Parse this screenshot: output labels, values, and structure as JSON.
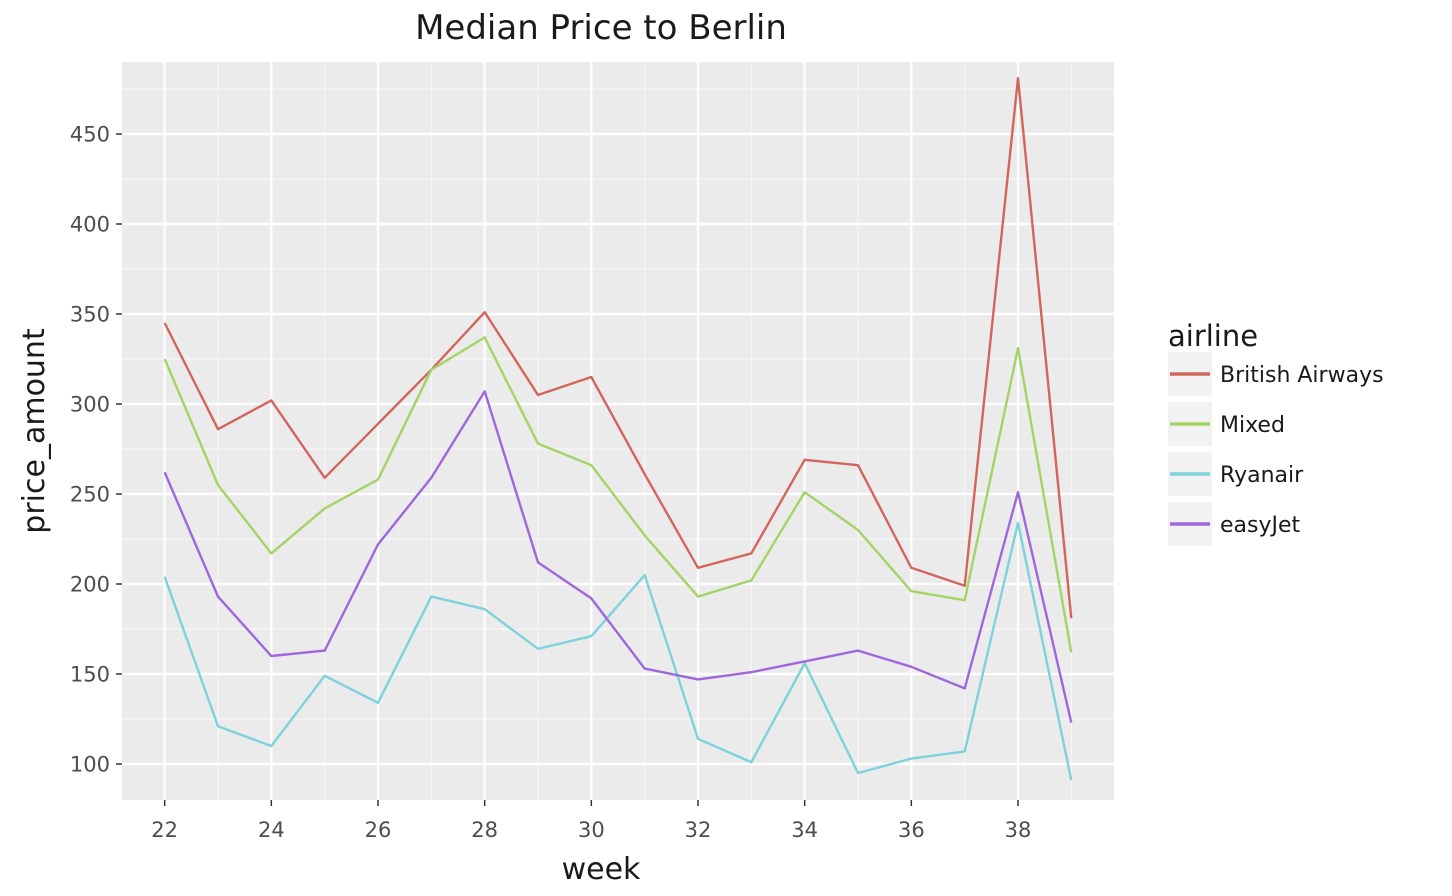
{
  "chart_data": {
    "type": "line",
    "title": "Median Price to Berlin",
    "xlabel": "week",
    "ylabel": "price_amount",
    "xlim": [
      21.2,
      39.8
    ],
    "ylim": [
      80,
      490
    ],
    "xticks": [
      22,
      24,
      26,
      28,
      30,
      32,
      34,
      36,
      38
    ],
    "yticks": [
      100,
      150,
      200,
      250,
      300,
      350,
      400,
      450
    ],
    "grid": true,
    "legend": {
      "title": "airline",
      "position": "right"
    },
    "x": [
      22,
      23,
      24,
      25,
      26,
      27,
      28,
      29,
      30,
      31,
      32,
      33,
      34,
      35,
      36,
      37,
      38,
      39
    ],
    "series": [
      {
        "name": "British Airways",
        "color": "#D2665B",
        "values": [
          345,
          286,
          302,
          259,
          289,
          319,
          351,
          305,
          315,
          261,
          209,
          217,
          269,
          266,
          209,
          199,
          481,
          181
        ]
      },
      {
        "name": "Mixed",
        "color": "#A3D465",
        "values": [
          325,
          255,
          217,
          242,
          258,
          319,
          337,
          278,
          266,
          227,
          193,
          202,
          251,
          230,
          196,
          191,
          331,
          162
        ]
      },
      {
        "name": "Ryanair",
        "color": "#7DD2DC",
        "values": [
          204,
          121,
          110,
          149,
          134,
          193,
          186,
          164,
          171,
          205,
          114,
          101,
          156,
          95,
          103,
          107,
          234,
          91
        ]
      },
      {
        "name": "easyJet",
        "color": "#A066DC",
        "values": [
          262,
          193,
          160,
          163,
          222,
          259,
          307,
          212,
          192,
          153,
          147,
          151,
          157,
          163,
          154,
          142,
          251,
          123
        ]
      }
    ]
  }
}
